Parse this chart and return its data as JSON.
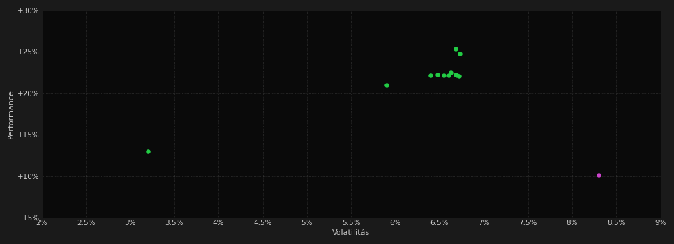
{
  "background_color": "#1a1a1a",
  "plot_bg_color": "#0a0a0a",
  "grid_color": "#404040",
  "text_color": "#cccccc",
  "xlabel": "Volatilitás",
  "ylabel": "Performance",
  "xlim": [
    0.02,
    0.09
  ],
  "ylim": [
    0.05,
    0.3
  ],
  "xticks": [
    0.02,
    0.025,
    0.03,
    0.035,
    0.04,
    0.045,
    0.05,
    0.055,
    0.06,
    0.065,
    0.07,
    0.075,
    0.08,
    0.085,
    0.09
  ],
  "yticks": [
    0.05,
    0.1,
    0.15,
    0.2,
    0.25,
    0.3
  ],
  "ytick_labels": [
    "+5%",
    "+10%",
    "+15%",
    "+20%",
    "+25%",
    "+30%"
  ],
  "xtick_labels": [
    "2%",
    "2.5%",
    "3%",
    "3.5%",
    "4%",
    "4.5%",
    "5%",
    "5.5%",
    "6%",
    "6.5%",
    "7%",
    "7.5%",
    "8%",
    "8.5%",
    "9%"
  ],
  "green_dots_xy": [
    [
      0.032,
      0.13
    ],
    [
      0.059,
      0.21
    ],
    [
      0.064,
      0.222
    ],
    [
      0.0648,
      0.223
    ],
    [
      0.0655,
      0.222
    ],
    [
      0.066,
      0.222
    ],
    [
      0.0663,
      0.225
    ],
    [
      0.0668,
      0.223
    ],
    [
      0.067,
      0.222
    ],
    [
      0.0672,
      0.221
    ],
    [
      0.0668,
      0.254
    ],
    [
      0.0673,
      0.248
    ]
  ],
  "magenta_dot": [
    0.083,
    0.101
  ],
  "dot_size": 22,
  "green_color": "#22cc44",
  "magenta_color": "#cc44cc",
  "font_size_label": 8,
  "font_size_tick": 7.5
}
